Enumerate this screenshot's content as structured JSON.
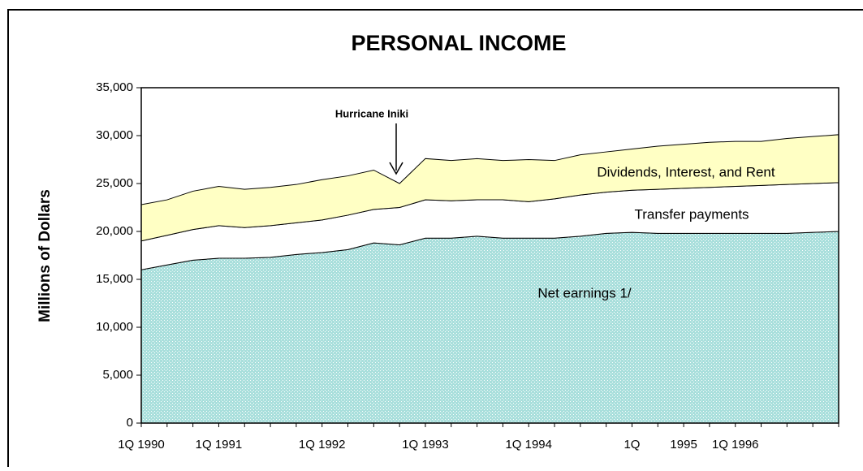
{
  "chart_data": {
    "type": "stacked_area",
    "title": "PERSONAL INCOME",
    "y_label": "Millions of Dollars",
    "categories": [
      "1Q 1990",
      null,
      null,
      "1Q 1991",
      null,
      null,
      null,
      "1Q 1992",
      null,
      null,
      null,
      "1Q 1993",
      null,
      null,
      null,
      "1Q 1994",
      null,
      null,
      null,
      "1Q",
      null,
      "1995",
      null,
      "1Q 1996",
      null,
      null,
      null,
      null
    ],
    "series": [
      {
        "name": "Net earnings    1/",
        "color": "#a9dfdc",
        "values": [
          16000,
          16500,
          17000,
          17200,
          17200,
          17300,
          17600,
          17800,
          18100,
          18800,
          18600,
          19300,
          19300,
          19500,
          19300,
          19300,
          19300,
          19500,
          19800,
          19900,
          19800,
          19800,
          19800,
          19800,
          19800,
          19800,
          19900,
          20000
        ]
      },
      {
        "name": "Transfer payments",
        "color": "#ffffff",
        "values": [
          3000,
          3100,
          3200,
          3400,
          3200,
          3300,
          3300,
          3400,
          3600,
          3500,
          3900,
          4000,
          3900,
          3800,
          4000,
          3800,
          4100,
          4300,
          4300,
          4400,
          4600,
          4700,
          4800,
          4900,
          5000,
          5100,
          5100,
          5100
        ]
      },
      {
        "name": "Dividends, Interest, and Rent",
        "color": "#ffffc4",
        "values": [
          3800,
          3700,
          4000,
          4100,
          4000,
          4000,
          4000,
          4200,
          4100,
          4100,
          2500,
          4300,
          4200,
          4300,
          4100,
          4400,
          4000,
          4200,
          4200,
          4300,
          4500,
          4600,
          4700,
          4700,
          4600,
          4800,
          4900,
          5000
        ]
      }
    ],
    "annotations": [
      {
        "text": "Hurricane Iniki"
      }
    ],
    "ylim": [
      0,
      35000
    ],
    "yticks": [
      0,
      {
        "value": 5000,
        "label": "5,000"
      },
      {
        "value": 10000,
        "label": "10,000"
      },
      {
        "value": 15000,
        "label": "15,000"
      },
      {
        "value": 20000,
        "label": "20,000"
      },
      {
        "value": 25000,
        "label": "25,000"
      },
      {
        "value": 30000,
        "label": "30,000"
      },
      {
        "value": 35000,
        "label": "35,000"
      }
    ],
    "grid": false
  }
}
